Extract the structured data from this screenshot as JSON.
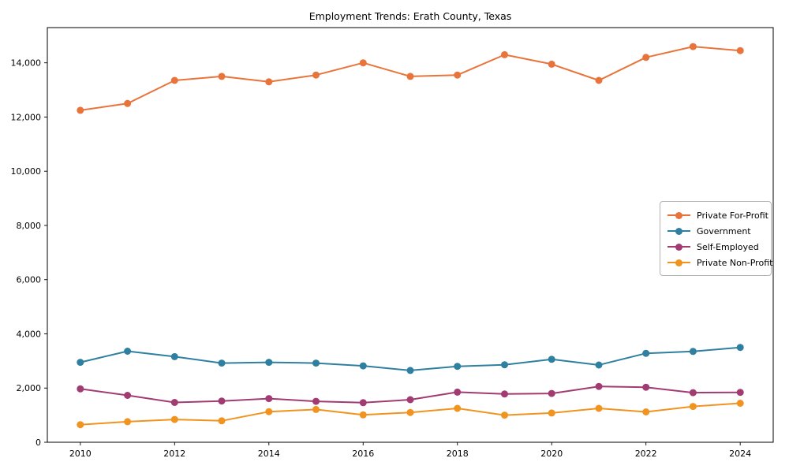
{
  "chart_data": {
    "type": "line",
    "title": "Employment Trends: Erath County, Texas",
    "xlabel": "",
    "ylabel": "",
    "x": [
      2010,
      2011,
      2012,
      2013,
      2014,
      2015,
      2016,
      2017,
      2018,
      2019,
      2020,
      2021,
      2022,
      2023,
      2024
    ],
    "xticks": [
      2010,
      2012,
      2014,
      2016,
      2018,
      2020,
      2022,
      2024
    ],
    "yticks": [
      0,
      2000,
      4000,
      6000,
      8000,
      10000,
      12000,
      14000
    ],
    "xlim": [
      2009.3,
      2024.7
    ],
    "ylim": [
      0,
      15300
    ],
    "grid": false,
    "legend_position": "center-right",
    "marker": "circle",
    "series": [
      {
        "name": "Private For-Profit",
        "color": "#E8743B",
        "values": [
          12250,
          12500,
          13350,
          13500,
          13300,
          13550,
          14000,
          13500,
          13550,
          14300,
          13950,
          13350,
          14200,
          14600,
          14450
        ]
      },
      {
        "name": "Government",
        "color": "#2F7FA0",
        "values": [
          2950,
          3360,
          3160,
          2920,
          2950,
          2920,
          2820,
          2650,
          2800,
          2860,
          3060,
          2850,
          3280,
          3350,
          3500
        ]
      },
      {
        "name": "Self-Employed",
        "color": "#A23B72",
        "values": [
          1970,
          1730,
          1470,
          1520,
          1610,
          1510,
          1460,
          1570,
          1850,
          1780,
          1800,
          2060,
          2030,
          1830,
          1840
        ]
      },
      {
        "name": "Private Non-Profit",
        "color": "#F0941F",
        "values": [
          650,
          760,
          840,
          790,
          1130,
          1210,
          1010,
          1100,
          1250,
          1000,
          1080,
          1250,
          1120,
          1320,
          1440
        ]
      }
    ]
  }
}
